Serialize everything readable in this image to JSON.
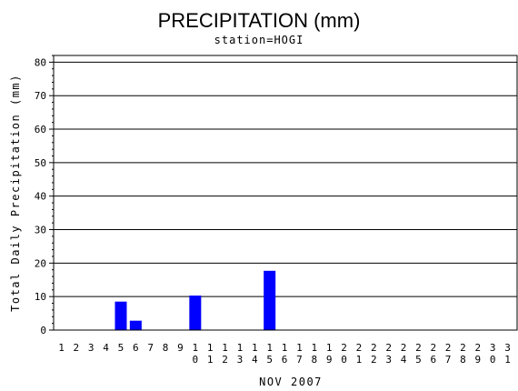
{
  "chart_data": {
    "type": "bar",
    "title": "PRECIPITATION (mm)",
    "subtitle": "station=HOGI",
    "xlabel": "NOV 2007",
    "ylabel": "Total Daily Precipitation (mm)",
    "ylim": [
      0,
      82
    ],
    "yticks": [
      0,
      10,
      20,
      30,
      40,
      50,
      60,
      70,
      80
    ],
    "grid": true,
    "bar_color": "#0000ff",
    "categories": [
      "1",
      "2",
      "3",
      "4",
      "5",
      "6",
      "7",
      "8",
      "9",
      "10",
      "11",
      "12",
      "13",
      "14",
      "15",
      "16",
      "17",
      "18",
      "19",
      "20",
      "21",
      "22",
      "23",
      "24",
      "25",
      "26",
      "27",
      "28",
      "29",
      "30",
      "31"
    ],
    "values": [
      0,
      0,
      0,
      0,
      8.5,
      2.8,
      0,
      0,
      0,
      10.3,
      0,
      0,
      0,
      0,
      17.7,
      0,
      0,
      0,
      0,
      0,
      0,
      0,
      0,
      0,
      0,
      0,
      0,
      0,
      0,
      0,
      0
    ]
  }
}
